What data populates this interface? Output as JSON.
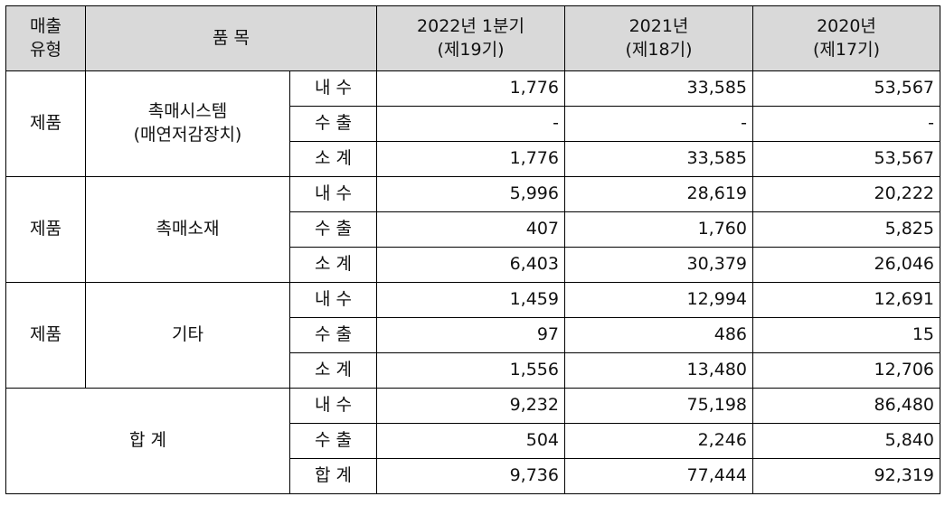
{
  "header": {
    "type": [
      "매출",
      "유형"
    ],
    "item": "품 목",
    "periods": [
      {
        "line1": "2022년 1분기",
        "line2": "(제19기)"
      },
      {
        "line1": "2021년",
        "line2": "(제18기)"
      },
      {
        "line1": "2020년",
        "line2": "(제17기)"
      }
    ]
  },
  "groups": [
    {
      "type": "제품",
      "item": [
        "촉매시스템",
        "(매연저감장치)"
      ],
      "rows": [
        {
          "label": "내 수",
          "values": [
            "1,776",
            "33,585",
            "53,567"
          ]
        },
        {
          "label": "수 출",
          "values": [
            "-",
            "-",
            "-"
          ]
        },
        {
          "label": "소 계",
          "values": [
            "1,776",
            "33,585",
            "53,567"
          ]
        }
      ]
    },
    {
      "type": "제품",
      "item": [
        "촉매소재"
      ],
      "rows": [
        {
          "label": "내 수",
          "values": [
            "5,996",
            "28,619",
            "20,222"
          ]
        },
        {
          "label": "수 출",
          "values": [
            "407",
            "1,760",
            "5,825"
          ]
        },
        {
          "label": "소 계",
          "values": [
            "6,403",
            "30,379",
            "26,046"
          ]
        }
      ]
    },
    {
      "type": "제품",
      "item": [
        "기타"
      ],
      "rows": [
        {
          "label": "내 수",
          "values": [
            "1,459",
            "12,994",
            "12,691"
          ]
        },
        {
          "label": "수 출",
          "values": [
            "97",
            "486",
            "15"
          ]
        },
        {
          "label": "소 계",
          "values": [
            "1,556",
            "13,480",
            "12,706"
          ]
        }
      ]
    }
  ],
  "total": {
    "label": "합 계",
    "rows": [
      {
        "label": "내 수",
        "values": [
          "9,232",
          "75,198",
          "86,480"
        ]
      },
      {
        "label": "수 출",
        "values": [
          "504",
          "2,246",
          "5,840"
        ]
      },
      {
        "label": "합 계",
        "values": [
          "9,736",
          "77,444",
          "92,319"
        ]
      }
    ]
  }
}
